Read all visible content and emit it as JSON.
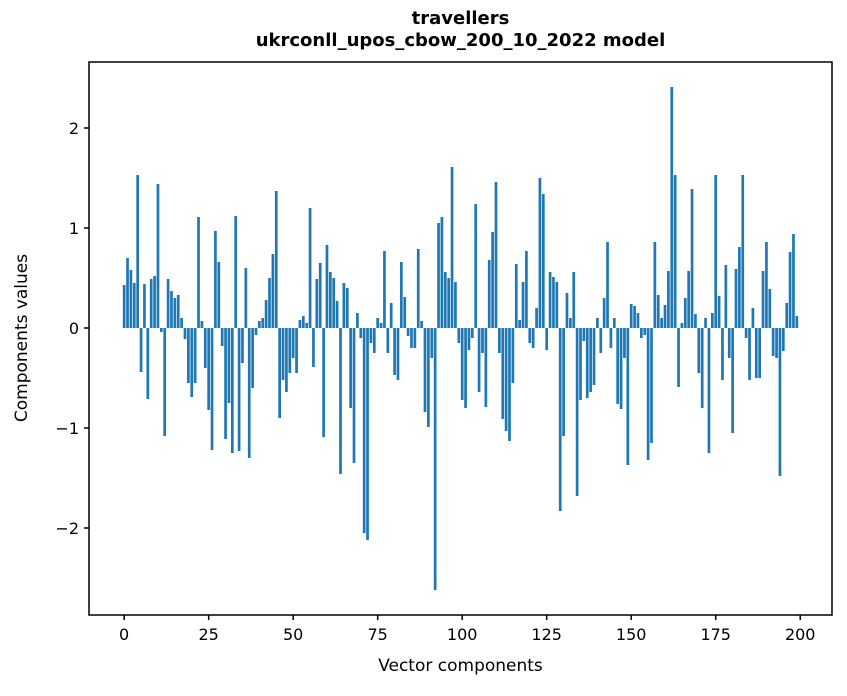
{
  "figure": {
    "title_line1": "travellers",
    "title_line2": "ukrconll_upos_cbow_200_10_2022 model"
  },
  "chart_data": {
    "type": "bar",
    "title": "travellers\nukrconll_upos_cbow_200_10_2022 model",
    "xlabel": "Vector components",
    "ylabel": "Components values",
    "x_ticks": [
      0,
      25,
      50,
      75,
      100,
      125,
      150,
      175,
      200
    ],
    "y_ticks": [
      -2,
      -1,
      0,
      1,
      2
    ],
    "xlim": [
      -10.4,
      209.4
    ],
    "ylim": [
      -2.87,
      2.66
    ],
    "grid": false,
    "legend": null,
    "bar_color": "#1f77b4",
    "axis_color": "#000000",
    "bar_width": 0.8,
    "categories_note": "x = vector component index 0..199",
    "values": [
      0.43,
      0.7,
      0.58,
      0.45,
      1.53,
      -0.44,
      0.44,
      -0.71,
      0.49,
      0.52,
      1.44,
      -0.04,
      -1.08,
      0.49,
      0.37,
      0.3,
      0.33,
      0.1,
      -0.11,
      -0.55,
      -0.69,
      -0.55,
      1.11,
      0.07,
      -0.4,
      -0.82,
      -1.22,
      0.97,
      0.66,
      -0.18,
      -1.11,
      -0.75,
      -1.25,
      1.12,
      -1.23,
      -0.35,
      0.6,
      -1.3,
      -0.6,
      -0.07,
      0.07,
      0.1,
      0.28,
      0.5,
      0.74,
      1.37,
      -0.9,
      -0.52,
      -0.64,
      -0.45,
      -0.3,
      -0.45,
      0.08,
      0.12,
      0.05,
      1.2,
      -0.39,
      0.49,
      0.65,
      -1.09,
      0.83,
      0.56,
      0.5,
      0.27,
      -1.46,
      0.45,
      0.4,
      -0.8,
      -1.35,
      0.15,
      -0.1,
      -2.05,
      -2.12,
      -0.15,
      -0.25,
      0.1,
      0.05,
      0.77,
      -0.25,
      0.25,
      -0.47,
      -0.52,
      0.66,
      0.31,
      -0.08,
      -0.2,
      -0.2,
      0.79,
      0.07,
      -0.84,
      -0.99,
      -0.3,
      -2.62,
      1.05,
      1.11,
      0.56,
      0.5,
      1.61,
      0.46,
      -0.15,
      -0.72,
      -0.8,
      -0.22,
      -0.1,
      1.24,
      -0.64,
      -0.25,
      -0.79,
      0.68,
      0.96,
      1.46,
      -0.25,
      -0.91,
      -1.03,
      -1.13,
      -0.55,
      0.64,
      0.08,
      0.46,
      0.77,
      -0.15,
      -0.2,
      0.2,
      1.5,
      1.34,
      -0.22,
      0.56,
      0.51,
      0.46,
      -1.83,
      -1.08,
      0.35,
      0.1,
      0.56,
      -1.68,
      -0.72,
      -0.13,
      -0.7,
      -0.64,
      -0.57,
      0.1,
      -0.25,
      0.3,
      0.86,
      -0.2,
      0.1,
      -0.76,
      -0.81,
      -0.3,
      -1.37,
      0.24,
      0.22,
      0.15,
      -0.1,
      -0.07,
      -1.32,
      -1.15,
      0.86,
      0.33,
      0.1,
      0.23,
      0.57,
      2.41,
      1.53,
      -0.59,
      0.05,
      0.3,
      0.57,
      1.39,
      0.14,
      -0.45,
      -0.8,
      0.1,
      -1.25,
      0.15,
      1.53,
      0.32,
      -0.52,
      0.63,
      -0.3,
      -1.05,
      0.59,
      0.81,
      1.53,
      -0.1,
      -0.52,
      0.2,
      -0.5,
      -0.5,
      0.57,
      0.86,
      0.39,
      -0.28,
      -0.3,
      -1.48,
      -0.23,
      0.25,
      0.76,
      0.94,
      0.12
    ]
  }
}
